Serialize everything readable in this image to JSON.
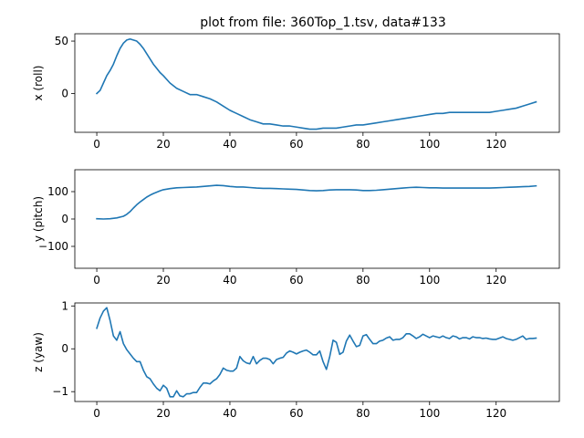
{
  "title": "plot from file: 360Top_1.tsv, data#133",
  "colors": {
    "line": "#1f77b4"
  },
  "chart_data": [
    {
      "type": "line",
      "ylabel": "x (roll)",
      "xlim": [
        -6.6,
        139
      ],
      "ylim": [
        -37,
        57
      ],
      "xticks": [
        0,
        20,
        40,
        60,
        80,
        100,
        120
      ],
      "yticks": [
        0,
        50
      ],
      "series": [
        {
          "x": [
            0,
            1,
            2,
            3,
            4,
            5,
            6,
            7,
            8,
            9,
            10,
            11,
            12,
            13,
            14,
            15,
            16,
            17,
            18,
            19,
            20,
            22,
            24,
            26,
            28,
            30,
            32,
            34,
            36,
            38,
            40,
            42,
            44,
            46,
            48,
            50,
            52,
            54,
            56,
            58,
            60,
            62,
            64,
            66,
            68,
            70,
            72,
            74,
            76,
            78,
            80,
            82,
            84,
            86,
            88,
            90,
            92,
            94,
            96,
            98,
            100,
            102,
            104,
            106,
            108,
            110,
            112,
            114,
            116,
            118,
            120,
            122,
            124,
            126,
            128,
            130,
            132
          ],
          "y": [
            0,
            3,
            10,
            17,
            22,
            28,
            36,
            43,
            48,
            51,
            52,
            51,
            50,
            47,
            43,
            38,
            33,
            28,
            24,
            20,
            17,
            10,
            5,
            2,
            -1,
            -1,
            -3,
            -5,
            -8,
            -12,
            -16,
            -19,
            -22,
            -25,
            -27,
            -29,
            -29,
            -30,
            -31,
            -31,
            -32,
            -33,
            -34,
            -34,
            -33,
            -33,
            -33,
            -32,
            -31,
            -30,
            -30,
            -29,
            -28,
            -27,
            -26,
            -25,
            -24,
            -23,
            -22,
            -21,
            -20,
            -19,
            -19,
            -18,
            -18,
            -18,
            -18,
            -18,
            -18,
            -18,
            -17,
            -16,
            -15,
            -14,
            -12,
            -10,
            -8
          ]
        }
      ]
    },
    {
      "type": "line",
      "ylabel": "y (pitch)",
      "xlim": [
        -6.6,
        139
      ],
      "ylim": [
        -180,
        180
      ],
      "xticks": [
        0,
        20,
        40,
        60,
        80,
        100,
        120
      ],
      "yticks": [
        -100,
        0,
        100
      ],
      "series": [
        {
          "x": [
            0,
            2,
            4,
            6,
            8,
            9,
            10,
            11,
            12,
            13,
            14,
            15,
            16,
            17,
            18,
            19,
            20,
            22,
            24,
            26,
            28,
            30,
            32,
            34,
            36,
            38,
            40,
            42,
            44,
            46,
            48,
            50,
            52,
            54,
            56,
            58,
            60,
            62,
            64,
            66,
            68,
            70,
            72,
            74,
            76,
            78,
            80,
            82,
            84,
            86,
            88,
            90,
            92,
            94,
            96,
            98,
            100,
            102,
            104,
            106,
            108,
            110,
            112,
            114,
            116,
            118,
            120,
            122,
            124,
            126,
            128,
            130,
            132
          ],
          "y": [
            1,
            0,
            1,
            4,
            10,
            17,
            27,
            40,
            52,
            62,
            71,
            80,
            87,
            93,
            98,
            103,
            107,
            111,
            114,
            115,
            116,
            117,
            119,
            121,
            123,
            122,
            119,
            117,
            117,
            115,
            113,
            112,
            112,
            111,
            110,
            109,
            108,
            106,
            104,
            103,
            104,
            106,
            107,
            107,
            107,
            106,
            104,
            104,
            105,
            107,
            109,
            111,
            113,
            115,
            116,
            115,
            114,
            114,
            113,
            113,
            113,
            113,
            113,
            113,
            113,
            113,
            114,
            115,
            116,
            117,
            118,
            119,
            121
          ]
        }
      ]
    },
    {
      "type": "line",
      "ylabel": "z (yaw)",
      "xlim": [
        -6.6,
        139
      ],
      "ylim": [
        -1.23,
        1.07
      ],
      "xticks": [
        0,
        20,
        40,
        60,
        80,
        100,
        120
      ],
      "yticks": [
        -1,
        0,
        1
      ],
      "series": [
        {
          "x": [
            0,
            1,
            2,
            3,
            4,
            5,
            6,
            7,
            8,
            9,
            10,
            11,
            12,
            13,
            14,
            15,
            16,
            17,
            18,
            19,
            20,
            21,
            22,
            23,
            24,
            25,
            26,
            27,
            28,
            29,
            30,
            31,
            32,
            33,
            34,
            35,
            36,
            37,
            38,
            39,
            40,
            41,
            42,
            43,
            44,
            45,
            46,
            47,
            48,
            49,
            50,
            51,
            52,
            53,
            54,
            55,
            56,
            57,
            58,
            59,
            60,
            61,
            62,
            63,
            64,
            65,
            66,
            67,
            68,
            69,
            70,
            71,
            72,
            73,
            74,
            75,
            76,
            77,
            78,
            79,
            80,
            81,
            82,
            83,
            84,
            85,
            86,
            87,
            88,
            89,
            90,
            91,
            92,
            93,
            94,
            95,
            96,
            97,
            98,
            99,
            100,
            101,
            102,
            103,
            104,
            105,
            106,
            107,
            108,
            109,
            110,
            111,
            112,
            113,
            114,
            115,
            116,
            117,
            118,
            119,
            120,
            121,
            122,
            123,
            124,
            125,
            126,
            127,
            128,
            129,
            130,
            131,
            132
          ],
          "y": [
            0.48,
            0.72,
            0.88,
            0.96,
            0.66,
            0.3,
            0.2,
            0.4,
            0.12,
            -0.02,
            -0.12,
            -0.22,
            -0.3,
            -0.3,
            -0.5,
            -0.65,
            -0.7,
            -0.82,
            -0.92,
            -0.98,
            -0.85,
            -0.92,
            -1.12,
            -1.12,
            -0.98,
            -1.1,
            -1.12,
            -1.05,
            -1.05,
            -1.02,
            -1.02,
            -0.9,
            -0.8,
            -0.8,
            -0.82,
            -0.75,
            -0.7,
            -0.6,
            -0.45,
            -0.5,
            -0.52,
            -0.52,
            -0.45,
            -0.18,
            -0.28,
            -0.33,
            -0.35,
            -0.18,
            -0.35,
            -0.27,
            -0.22,
            -0.22,
            -0.25,
            -0.35,
            -0.25,
            -0.22,
            -0.2,
            -0.1,
            -0.05,
            -0.08,
            -0.12,
            -0.08,
            -0.05,
            -0.03,
            -0.08,
            -0.14,
            -0.14,
            -0.05,
            -0.3,
            -0.48,
            -0.18,
            0.2,
            0.15,
            -0.13,
            -0.08,
            0.18,
            0.32,
            0.18,
            0.05,
            0.08,
            0.3,
            0.33,
            0.22,
            0.12,
            0.12,
            0.18,
            0.2,
            0.25,
            0.28,
            0.2,
            0.22,
            0.22,
            0.26,
            0.35,
            0.35,
            0.3,
            0.24,
            0.28,
            0.34,
            0.3,
            0.26,
            0.3,
            0.28,
            0.26,
            0.3,
            0.26,
            0.24,
            0.3,
            0.28,
            0.23,
            0.26,
            0.26,
            0.23,
            0.28,
            0.26,
            0.26,
            0.24,
            0.25,
            0.23,
            0.22,
            0.22,
            0.25,
            0.28,
            0.24,
            0.22,
            0.2,
            0.22,
            0.26,
            0.3,
            0.22,
            0.24,
            0.24,
            0.25
          ]
        }
      ]
    }
  ]
}
